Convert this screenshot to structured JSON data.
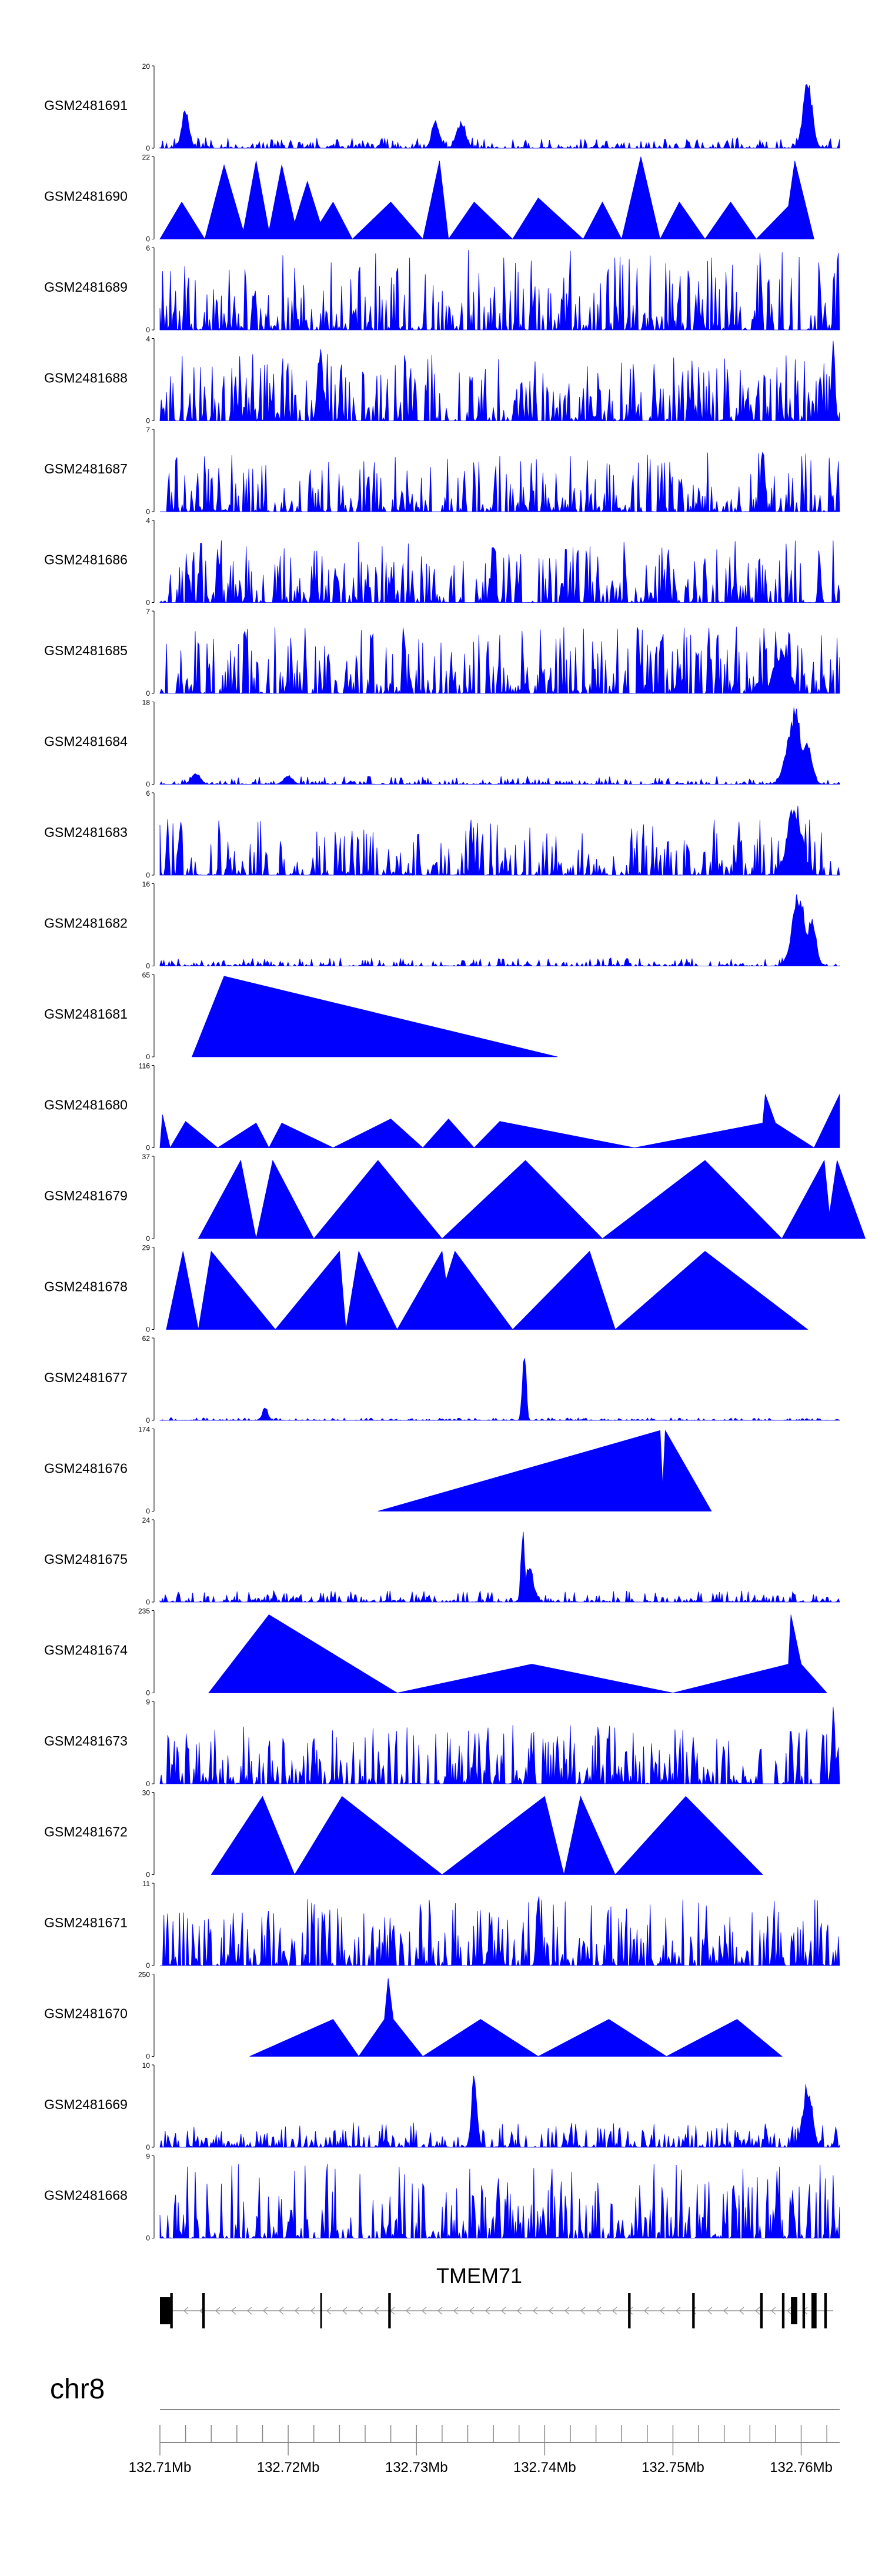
{
  "chart_data": {
    "type": "area",
    "description": "Gviz-style coverage tracks for 24 GEO samples over chr8 with gene model and genome axis",
    "x_unit": "Mb",
    "xlim": [
      132.71,
      132.763
    ],
    "tracks": [
      {
        "name": "GSM2481691",
        "ylim": [
          0,
          20
        ],
        "color": "#0000ff",
        "style": "noise",
        "base": 0.13,
        "seed": 91,
        "peaks": [
          [
            132.712,
            0.55,
            0.0004
          ],
          [
            132.7315,
            0.4,
            0.0004
          ],
          [
            132.7335,
            0.35,
            0.0005
          ],
          [
            132.7605,
            0.92,
            0.0005
          ]
        ]
      },
      {
        "name": "GSM2481690",
        "ylim": [
          0,
          22
        ],
        "color": "#0000ff",
        "style": "triangles",
        "seed": 90,
        "points": [
          [
            132.71,
            0.0
          ],
          [
            132.7117,
            0.45
          ],
          [
            132.7135,
            0.0
          ],
          [
            132.715,
            0.9
          ],
          [
            132.7165,
            0.1
          ],
          [
            132.7175,
            0.95
          ],
          [
            132.7185,
            0.1
          ],
          [
            132.7195,
            0.9
          ],
          [
            132.7205,
            0.2
          ],
          [
            132.7215,
            0.7
          ],
          [
            132.7225,
            0.2
          ],
          [
            132.7235,
            0.45
          ],
          [
            132.725,
            0.0
          ],
          [
            132.728,
            0.45
          ],
          [
            132.7305,
            0.0
          ],
          [
            132.7318,
            0.95
          ],
          [
            132.7325,
            0.0
          ],
          [
            132.7345,
            0.45
          ],
          [
            132.7375,
            0.0
          ],
          [
            132.7395,
            0.5
          ],
          [
            132.743,
            0.0
          ],
          [
            132.7445,
            0.45
          ],
          [
            132.746,
            0.0
          ],
          [
            132.7475,
            1.0
          ],
          [
            132.749,
            0.0
          ],
          [
            132.7505,
            0.45
          ],
          [
            132.7525,
            0.0
          ],
          [
            132.7545,
            0.45
          ],
          [
            132.7565,
            0.0
          ],
          [
            132.759,
            0.4
          ],
          [
            132.7595,
            0.95
          ],
          [
            132.761,
            0.0
          ]
        ]
      },
      {
        "name": "GSM2481689",
        "ylim": [
          0,
          6
        ],
        "color": "#0000ff",
        "style": "spiky",
        "base": 0.55,
        "seed": 89,
        "peaks": []
      },
      {
        "name": "GSM2481688",
        "ylim": [
          0,
          4
        ],
        "color": "#0000ff",
        "style": "spiky",
        "base": 0.45,
        "seed": 88,
        "peaks": [
          [
            132.7225,
            0.95,
            0.0003
          ],
          [
            132.7625,
            1.0,
            0.0002
          ]
        ]
      },
      {
        "name": "GSM2481687",
        "ylim": [
          0,
          7
        ],
        "color": "#0000ff",
        "style": "spiky",
        "base": 0.4,
        "seed": 87,
        "peaks": [
          [
            132.757,
            0.9,
            0.0002
          ]
        ]
      },
      {
        "name": "GSM2481686",
        "ylim": [
          0,
          4
        ],
        "color": "#0000ff",
        "style": "spiky",
        "base": 0.42,
        "seed": 86,
        "peaks": [
          [
            132.736,
            0.95,
            0.0002
          ]
        ]
      },
      {
        "name": "GSM2481685",
        "ylim": [
          0,
          7
        ],
        "color": "#0000ff",
        "style": "spiky",
        "base": 0.45,
        "seed": 85,
        "peaks": [
          [
            132.7585,
            0.6,
            0.0008
          ]
        ]
      },
      {
        "name": "GSM2481684",
        "ylim": [
          0,
          18
        ],
        "color": "#0000ff",
        "style": "noise",
        "base": 0.1,
        "seed": 84,
        "peaks": [
          [
            132.7128,
            0.15,
            0.0005
          ],
          [
            132.72,
            0.12,
            0.0005
          ],
          [
            132.7595,
            0.95,
            0.0008
          ],
          [
            132.7605,
            0.6,
            0.0005
          ]
        ]
      },
      {
        "name": "GSM2481683",
        "ylim": [
          0,
          6
        ],
        "color": "#0000ff",
        "style": "spiky",
        "base": 0.38,
        "seed": 83,
        "peaks": [
          [
            132.7595,
            0.95,
            0.0008
          ]
        ]
      },
      {
        "name": "GSM2481682",
        "ylim": [
          0,
          16
        ],
        "color": "#0000ff",
        "style": "noise",
        "base": 0.1,
        "seed": 82,
        "peaks": [
          [
            132.7598,
            0.98,
            0.0007
          ],
          [
            132.7608,
            0.6,
            0.0005
          ]
        ]
      },
      {
        "name": "GSM2481681",
        "ylim": [
          0,
          65
        ],
        "color": "#0000ff",
        "style": "triangles",
        "seed": 81,
        "points": [
          [
            132.7125,
            0.0
          ],
          [
            132.715,
            0.98
          ],
          [
            132.741,
            0.0
          ]
        ]
      },
      {
        "name": "GSM2481680",
        "ylim": [
          0,
          116
        ],
        "color": "#0000ff",
        "style": "triangles",
        "seed": 80,
        "points": [
          [
            132.71,
            0.0
          ],
          [
            132.7102,
            0.4
          ],
          [
            132.7108,
            0.0
          ],
          [
            132.712,
            0.32
          ],
          [
            132.7145,
            0.0
          ],
          [
            132.7175,
            0.3
          ],
          [
            132.7185,
            0.0
          ],
          [
            132.7195,
            0.3
          ],
          [
            132.7235,
            0.0
          ],
          [
            132.728,
            0.35
          ],
          [
            132.7305,
            0.0
          ],
          [
            132.7325,
            0.35
          ],
          [
            132.7345,
            0.0
          ],
          [
            132.7365,
            0.32
          ],
          [
            132.747,
            0.0
          ],
          [
            132.757,
            0.3
          ],
          [
            132.7572,
            0.65
          ],
          [
            132.758,
            0.3
          ],
          [
            132.761,
            0.0
          ],
          [
            132.763,
            0.65
          ]
        ]
      },
      {
        "name": "GSM2481679",
        "ylim": [
          0,
          37
        ],
        "color": "#0000ff",
        "style": "triangles",
        "seed": 79,
        "points": [
          [
            132.713,
            0.0
          ],
          [
            132.7163,
            0.95
          ],
          [
            132.7175,
            0.0
          ],
          [
            132.7188,
            0.95
          ],
          [
            132.722,
            0.0
          ],
          [
            132.727,
            0.95
          ],
          [
            132.732,
            0.0
          ],
          [
            132.7385,
            0.95
          ],
          [
            132.7445,
            0.0
          ],
          [
            132.7525,
            0.95
          ],
          [
            132.7585,
            0.0
          ],
          [
            132.7618,
            0.95
          ],
          [
            132.7622,
            0.3
          ],
          [
            132.7628,
            0.95
          ],
          [
            132.765,
            0.0
          ]
        ]
      },
      {
        "name": "GSM2481678",
        "ylim": [
          0,
          29
        ],
        "color": "#0000ff",
        "style": "triangles",
        "seed": 78,
        "points": [
          [
            132.7105,
            0.0
          ],
          [
            132.7118,
            0.95
          ],
          [
            132.713,
            0.0
          ],
          [
            132.714,
            0.95
          ],
          [
            132.719,
            0.0
          ],
          [
            132.724,
            0.95
          ],
          [
            132.7245,
            0.0
          ],
          [
            132.7255,
            0.95
          ],
          [
            132.7285,
            0.0
          ],
          [
            132.732,
            0.95
          ],
          [
            132.7323,
            0.6
          ],
          [
            132.733,
            0.95
          ],
          [
            132.7375,
            0.0
          ],
          [
            132.7435,
            0.95
          ],
          [
            132.7455,
            0.0
          ],
          [
            132.7525,
            0.95
          ],
          [
            132.7605,
            0.0
          ]
        ]
      },
      {
        "name": "GSM2481677",
        "ylim": [
          0,
          62
        ],
        "color": "#0000ff",
        "style": "noise",
        "base": 0.03,
        "seed": 77,
        "peaks": [
          [
            132.7182,
            0.18,
            0.0003
          ],
          [
            132.7384,
            1.0,
            0.0002
          ]
        ]
      },
      {
        "name": "GSM2481676",
        "ylim": [
          0,
          174
        ],
        "color": "#0000ff",
        "style": "triangles",
        "seed": 76,
        "points": [
          [
            132.727,
            0.0
          ],
          [
            132.749,
            0.98
          ],
          [
            132.7492,
            0.3
          ],
          [
            132.7494,
            0.98
          ],
          [
            132.753,
            0.0
          ]
        ]
      },
      {
        "name": "GSM2481675",
        "ylim": [
          0,
          24
        ],
        "color": "#0000ff",
        "style": "noise",
        "base": 0.14,
        "seed": 75,
        "peaks": [
          [
            132.7383,
            1.0,
            0.0002
          ],
          [
            132.7388,
            0.45,
            0.0005
          ]
        ]
      },
      {
        "name": "GSM2481674",
        "ylim": [
          0,
          235
        ],
        "color": "#0000ff",
        "style": "triangles",
        "seed": 74,
        "points": [
          [
            132.7138,
            0.0
          ],
          [
            132.7185,
            0.95
          ],
          [
            132.7285,
            0.0
          ],
          [
            132.739,
            0.35
          ],
          [
            132.75,
            0.0
          ],
          [
            132.759,
            0.35
          ],
          [
            132.7592,
            0.95
          ],
          [
            132.76,
            0.35
          ],
          [
            132.762,
            0.0
          ]
        ]
      },
      {
        "name": "GSM2481673",
        "ylim": [
          0,
          9
        ],
        "color": "#0000ff",
        "style": "spiky",
        "base": 0.4,
        "seed": 73,
        "peaks": [
          [
            132.7625,
            1.0,
            0.0002
          ]
        ]
      },
      {
        "name": "GSM2481672",
        "ylim": [
          0,
          30
        ],
        "color": "#0000ff",
        "style": "triangles",
        "seed": 72,
        "points": [
          [
            132.714,
            0.0
          ],
          [
            132.718,
            0.95
          ],
          [
            132.7205,
            0.0
          ],
          [
            132.7242,
            0.95
          ],
          [
            132.732,
            0.0
          ],
          [
            132.74,
            0.95
          ],
          [
            132.7415,
            0.0
          ],
          [
            132.7428,
            0.95
          ],
          [
            132.7455,
            0.0
          ],
          [
            132.751,
            0.95
          ],
          [
            132.757,
            0.0
          ]
        ]
      },
      {
        "name": "GSM2481671",
        "ylim": [
          0,
          11
        ],
        "color": "#0000ff",
        "style": "spiky",
        "base": 0.45,
        "seed": 71,
        "peaks": [
          [
            132.7395,
            0.95,
            0.0002
          ]
        ]
      },
      {
        "name": "GSM2481670",
        "ylim": [
          0,
          250
        ],
        "color": "#0000ff",
        "style": "triangles",
        "seed": 70,
        "points": [
          [
            132.717,
            0.0
          ],
          [
            132.7235,
            0.45
          ],
          [
            132.7255,
            0.0
          ],
          [
            132.7275,
            0.45
          ],
          [
            132.7278,
            0.95
          ],
          [
            132.7282,
            0.45
          ],
          [
            132.7305,
            0.0
          ],
          [
            132.735,
            0.45
          ],
          [
            132.7395,
            0.0
          ],
          [
            132.745,
            0.45
          ],
          [
            132.7495,
            0.0
          ],
          [
            132.755,
            0.45
          ],
          [
            132.7585,
            0.0
          ]
        ]
      },
      {
        "name": "GSM2481669",
        "ylim": [
          0,
          10
        ],
        "color": "#0000ff",
        "style": "noise",
        "base": 0.3,
        "seed": 69,
        "peaks": [
          [
            132.7345,
            0.95,
            0.0003
          ],
          [
            132.7605,
            0.85,
            0.0005
          ]
        ]
      },
      {
        "name": "GSM2481668",
        "ylim": [
          0,
          9
        ],
        "color": "#0000ff",
        "style": "spiky",
        "base": 0.5,
        "seed": 68,
        "peaks": []
      }
    ],
    "gene": {
      "label": "TMEM71",
      "strand": "-",
      "start": 132.7105,
      "end": 132.7625,
      "color": "#000000",
      "intron_color": "#999999",
      "exons": [
        [
          132.71,
          132.7108,
          "tall"
        ],
        [
          132.7108,
          132.711,
          "thin"
        ],
        [
          132.7133,
          132.7135,
          "thin"
        ],
        [
          132.7225,
          132.7226,
          "thin"
        ],
        [
          132.7278,
          132.728,
          "thin"
        ],
        [
          132.7465,
          132.7467,
          "thin"
        ],
        [
          132.7515,
          132.7517,
          "thin"
        ],
        [
          132.7568,
          132.757,
          "thin"
        ],
        [
          132.7585,
          132.7587,
          "thin"
        ],
        [
          132.7592,
          132.7597,
          "tall"
        ],
        [
          132.7601,
          132.7603,
          "thin"
        ],
        [
          132.7608,
          132.7612,
          "thin"
        ],
        [
          132.7618,
          132.762,
          "thin"
        ]
      ]
    },
    "axis": {
      "chromosome": "chr8",
      "labeled_ticks": [
        132.71,
        132.72,
        132.73,
        132.74,
        132.75,
        132.76
      ],
      "tick_labels": [
        "132.71Mb",
        "132.72Mb",
        "132.73Mb",
        "132.74Mb",
        "132.75Mb",
        "132.76Mb"
      ],
      "minor_step": 0.002
    }
  }
}
